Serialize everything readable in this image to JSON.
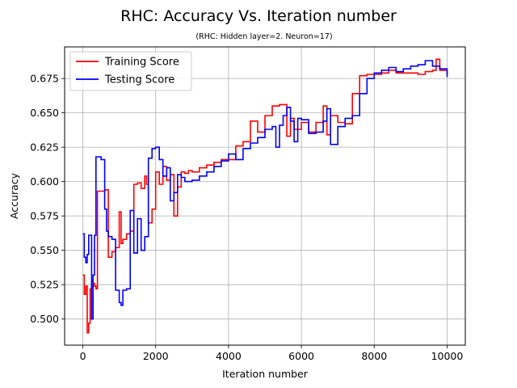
{
  "chart_data": {
    "type": "line",
    "title": "RHC: Accuracy Vs. Iteration number",
    "subtitle": "(RHC: Hidden layer=2. Neuron=17)",
    "xlabel": "Iteration number",
    "ylabel": "Accuracy",
    "xlim": [
      -500,
      10500
    ],
    "ylim": [
      0.481,
      0.698
    ],
    "xticks": [
      0,
      2000,
      4000,
      6000,
      8000,
      10000
    ],
    "xtick_labels": [
      "0",
      "2000",
      "4000",
      "6000",
      "8000",
      "10000"
    ],
    "yticks": [
      0.5,
      0.525,
      0.55,
      0.575,
      0.6,
      0.625,
      0.65,
      0.675
    ],
    "ytick_labels": [
      "0.500",
      "0.525",
      "0.550",
      "0.575",
      "0.600",
      "0.625",
      "0.650",
      "0.675"
    ],
    "grid": true,
    "legend_position": "top-left",
    "series": [
      {
        "name": "Training Score",
        "color": "#ff0000",
        "x": [
          0,
          40,
          80,
          120,
          160,
          200,
          240,
          280,
          320,
          360,
          400,
          500,
          600,
          700,
          800,
          900,
          1000,
          1050,
          1100,
          1200,
          1300,
          1400,
          1500,
          1600,
          1700,
          1750,
          1800,
          1900,
          2000,
          2100,
          2200,
          2300,
          2400,
          2500,
          2600,
          2700,
          2800,
          2900,
          3000,
          3200,
          3400,
          3600,
          3800,
          4000,
          4200,
          4400,
          4600,
          4800,
          5000,
          5200,
          5400,
          5600,
          5700,
          5800,
          6000,
          6200,
          6400,
          6600,
          6700,
          6800,
          7000,
          7200,
          7400,
          7600,
          7800,
          8000,
          8200,
          8400,
          8600,
          8800,
          9000,
          9200,
          9400,
          9600,
          9700,
          9800,
          10000
        ],
        "y": [
          0.532,
          0.518,
          0.524,
          0.49,
          0.497,
          0.522,
          0.528,
          0.526,
          0.524,
          0.522,
          0.593,
          0.593,
          0.594,
          0.545,
          0.549,
          0.552,
          0.578,
          0.555,
          0.558,
          0.562,
          0.564,
          0.598,
          0.599,
          0.595,
          0.604,
          0.598,
          0.57,
          0.58,
          0.607,
          0.598,
          0.611,
          0.601,
          0.605,
          0.575,
          0.596,
          0.607,
          0.606,
          0.608,
          0.607,
          0.61,
          0.612,
          0.614,
          0.616,
          0.616,
          0.626,
          0.629,
          0.644,
          0.636,
          0.648,
          0.655,
          0.656,
          0.633,
          0.646,
          0.638,
          0.643,
          0.636,
          0.643,
          0.655,
          0.634,
          0.648,
          0.643,
          0.642,
          0.664,
          0.677,
          0.678,
          0.678,
          0.679,
          0.681,
          0.679,
          0.679,
          0.679,
          0.678,
          0.68,
          0.681,
          0.689,
          0.681,
          0.678
        ]
      },
      {
        "name": "Testing Score",
        "color": "#0000ff",
        "x": [
          0,
          40,
          80,
          120,
          160,
          200,
          240,
          280,
          320,
          360,
          400,
          500,
          600,
          650,
          700,
          800,
          900,
          1000,
          1050,
          1100,
          1200,
          1300,
          1400,
          1500,
          1600,
          1700,
          1800,
          1900,
          2000,
          2100,
          2200,
          2300,
          2400,
          2500,
          2600,
          2700,
          2800,
          2900,
          3000,
          3200,
          3400,
          3600,
          3800,
          4000,
          4200,
          4400,
          4600,
          4800,
          5000,
          5200,
          5300,
          5400,
          5500,
          5600,
          5700,
          5800,
          5900,
          6000,
          6200,
          6400,
          6600,
          6700,
          6800,
          7000,
          7200,
          7400,
          7600,
          7800,
          8000,
          8200,
          8400,
          8600,
          8800,
          9000,
          9200,
          9400,
          9600,
          9800,
          10000
        ],
        "y": [
          0.562,
          0.545,
          0.541,
          0.547,
          0.561,
          0.561,
          0.5,
          0.532,
          0.561,
          0.618,
          0.618,
          0.616,
          0.58,
          0.564,
          0.56,
          0.558,
          0.521,
          0.512,
          0.51,
          0.521,
          0.522,
          0.579,
          0.548,
          0.573,
          0.55,
          0.56,
          0.617,
          0.624,
          0.625,
          0.616,
          0.604,
          0.61,
          0.586,
          0.592,
          0.605,
          0.603,
          0.6,
          0.6,
          0.601,
          0.604,
          0.607,
          0.611,
          0.615,
          0.62,
          0.616,
          0.624,
          0.628,
          0.632,
          0.638,
          0.64,
          0.625,
          0.641,
          0.648,
          0.654,
          0.644,
          0.629,
          0.646,
          0.645,
          0.635,
          0.636,
          0.644,
          0.653,
          0.627,
          0.64,
          0.646,
          0.648,
          0.664,
          0.675,
          0.679,
          0.681,
          0.683,
          0.68,
          0.682,
          0.684,
          0.685,
          0.688,
          0.684,
          0.682,
          0.676
        ]
      }
    ]
  }
}
